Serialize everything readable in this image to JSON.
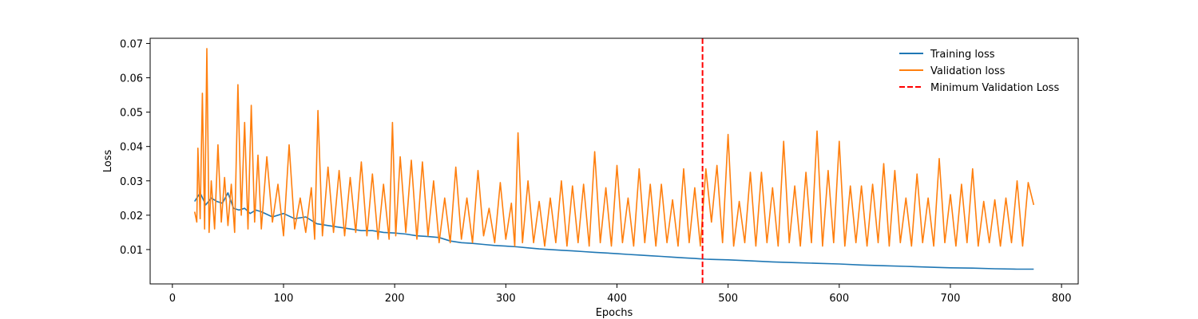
{
  "chart_data": {
    "type": "line",
    "title": "",
    "xlabel": "Epochs",
    "ylabel": "Loss",
    "xlim": [
      -20,
      815
    ],
    "ylim": [
      0.0,
      0.0715
    ],
    "x_ticks": [
      0,
      100,
      200,
      300,
      400,
      500,
      600,
      700,
      800
    ],
    "y_ticks": [
      0.01,
      0.02,
      0.03,
      0.04,
      0.05,
      0.06,
      0.07
    ],
    "grid": false,
    "legend_position": "top-right",
    "series": [
      {
        "name": "Training loss",
        "color": "#1f77b4",
        "x": [
          20,
          25,
          30,
          35,
          40,
          45,
          50,
          55,
          60,
          65,
          70,
          75,
          80,
          90,
          100,
          110,
          120,
          130,
          140,
          150,
          160,
          170,
          180,
          190,
          200,
          210,
          220,
          230,
          240,
          250,
          260,
          270,
          280,
          290,
          300,
          310,
          320,
          330,
          340,
          350,
          360,
          370,
          380,
          390,
          400,
          410,
          420,
          430,
          440,
          450,
          460,
          470,
          475,
          480,
          490,
          500,
          520,
          540,
          560,
          580,
          600,
          620,
          640,
          660,
          680,
          700,
          720,
          740,
          760,
          775
        ],
        "y": [
          0.024,
          0.0265,
          0.023,
          0.025,
          0.024,
          0.0235,
          0.0265,
          0.022,
          0.0215,
          0.022,
          0.0205,
          0.0215,
          0.021,
          0.0195,
          0.0205,
          0.019,
          0.0195,
          0.0175,
          0.017,
          0.0165,
          0.016,
          0.0155,
          0.0155,
          0.015,
          0.0148,
          0.0145,
          0.014,
          0.0138,
          0.0135,
          0.0125,
          0.012,
          0.0118,
          0.0115,
          0.0112,
          0.011,
          0.0108,
          0.0105,
          0.0102,
          0.01,
          0.0098,
          0.0096,
          0.0094,
          0.0092,
          0.009,
          0.0088,
          0.0086,
          0.0084,
          0.0082,
          0.008,
          0.0078,
          0.0076,
          0.0074,
          0.0073,
          0.0072,
          0.0071,
          0.007,
          0.0067,
          0.0064,
          0.0062,
          0.006,
          0.0058,
          0.0055,
          0.0053,
          0.0051,
          0.0049,
          0.0047,
          0.0046,
          0.0044,
          0.0043,
          0.0043
        ]
      },
      {
        "name": "Validation loss",
        "color": "#ff7f0e",
        "x": [
          20,
          22,
          23,
          25,
          27,
          29,
          31,
          33,
          35,
          38,
          41,
          44,
          47,
          50,
          53,
          56,
          59,
          62,
          65,
          68,
          71,
          74,
          77,
          80,
          85,
          90,
          95,
          100,
          105,
          110,
          115,
          120,
          125,
          128,
          131,
          135,
          140,
          145,
          150,
          155,
          160,
          165,
          170,
          175,
          180,
          185,
          190,
          195,
          198,
          201,
          205,
          210,
          215,
          220,
          225,
          230,
          235,
          240,
          245,
          250,
          255,
          260,
          265,
          270,
          275,
          280,
          285,
          290,
          295,
          300,
          305,
          308,
          311,
          315,
          320,
          325,
          330,
          335,
          340,
          345,
          350,
          355,
          360,
          365,
          370,
          375,
          380,
          385,
          390,
          395,
          400,
          405,
          410,
          415,
          420,
          425,
          430,
          435,
          440,
          445,
          450,
          455,
          460,
          465,
          470,
          475,
          480,
          485,
          490,
          495,
          500,
          505,
          510,
          515,
          520,
          525,
          530,
          535,
          540,
          545,
          550,
          555,
          560,
          565,
          570,
          575,
          580,
          585,
          590,
          595,
          600,
          605,
          610,
          615,
          620,
          625,
          630,
          635,
          640,
          645,
          650,
          655,
          660,
          665,
          670,
          675,
          680,
          685,
          690,
          695,
          700,
          705,
          710,
          715,
          720,
          725,
          730,
          735,
          740,
          745,
          750,
          755,
          760,
          765,
          770,
          775
        ],
        "y": [
          0.021,
          0.018,
          0.0395,
          0.019,
          0.0555,
          0.016,
          0.0685,
          0.015,
          0.03,
          0.016,
          0.0405,
          0.018,
          0.031,
          0.017,
          0.029,
          0.015,
          0.058,
          0.02,
          0.047,
          0.016,
          0.052,
          0.018,
          0.0375,
          0.016,
          0.037,
          0.018,
          0.029,
          0.014,
          0.0405,
          0.016,
          0.025,
          0.015,
          0.028,
          0.013,
          0.0505,
          0.014,
          0.034,
          0.015,
          0.033,
          0.014,
          0.031,
          0.015,
          0.0355,
          0.014,
          0.032,
          0.013,
          0.029,
          0.013,
          0.047,
          0.014,
          0.037,
          0.015,
          0.036,
          0.013,
          0.0355,
          0.014,
          0.03,
          0.012,
          0.025,
          0.012,
          0.034,
          0.013,
          0.025,
          0.012,
          0.033,
          0.014,
          0.022,
          0.012,
          0.0295,
          0.013,
          0.0235,
          0.011,
          0.044,
          0.012,
          0.03,
          0.012,
          0.024,
          0.011,
          0.025,
          0.012,
          0.03,
          0.011,
          0.0285,
          0.012,
          0.029,
          0.011,
          0.0385,
          0.012,
          0.028,
          0.011,
          0.0345,
          0.012,
          0.025,
          0.011,
          0.0335,
          0.012,
          0.029,
          0.011,
          0.029,
          0.012,
          0.0245,
          0.011,
          0.0335,
          0.012,
          0.028,
          0.011,
          0.0335,
          0.018,
          0.0345,
          0.012,
          0.0435,
          0.011,
          0.024,
          0.012,
          0.0325,
          0.011,
          0.0325,
          0.012,
          0.028,
          0.011,
          0.0415,
          0.012,
          0.0285,
          0.011,
          0.0325,
          0.012,
          0.0445,
          0.011,
          0.033,
          0.012,
          0.0415,
          0.011,
          0.0285,
          0.012,
          0.0285,
          0.011,
          0.029,
          0.012,
          0.035,
          0.011,
          0.033,
          0.012,
          0.025,
          0.011,
          0.032,
          0.012,
          0.025,
          0.011,
          0.0365,
          0.012,
          0.026,
          0.011,
          0.029,
          0.012,
          0.0335,
          0.011,
          0.024,
          0.012,
          0.0245,
          0.011,
          0.025,
          0.012,
          0.03,
          0.011,
          0.0295,
          0.023
        ]
      },
      {
        "name": "Minimum Validation Loss",
        "color": "#ff0000",
        "style": "dashed",
        "vline_x": 477
      }
    ]
  }
}
